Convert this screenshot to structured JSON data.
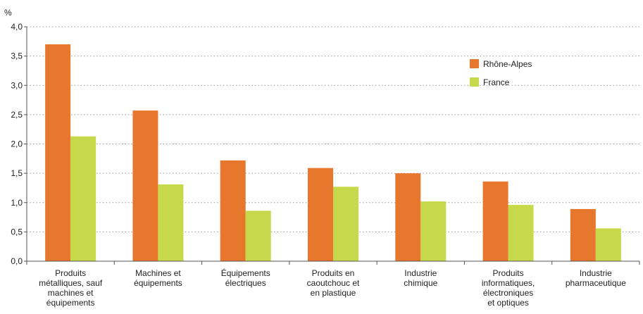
{
  "chart_data": {
    "type": "bar",
    "ylabel": "%",
    "ylim": [
      0,
      4.0
    ],
    "yticks": [
      "0,0",
      "0,5",
      "1,0",
      "1,5",
      "2,0",
      "2,5",
      "3,0",
      "3,5",
      "4,0"
    ],
    "grid": true,
    "legend_position": "top-right",
    "categories": [
      [
        "Produits",
        "métalliques, sauf",
        "machines et",
        "équipements"
      ],
      [
        "Machines et",
        "équipements"
      ],
      [
        "Équipements",
        "électriques"
      ],
      [
        "Produits en",
        "caoutchouc et",
        "en plastique"
      ],
      [
        "Industrie",
        "chimique"
      ],
      [
        "Produits",
        "informatiques,",
        "électroniques",
        "et optiques"
      ],
      [
        "Industrie",
        "pharmaceutique"
      ]
    ],
    "series": [
      {
        "name": "Rhône-Alpes",
        "color": "#e8772e",
        "values": [
          3.7,
          2.57,
          1.72,
          1.59,
          1.5,
          1.36,
          0.89
        ]
      },
      {
        "name": "France",
        "color": "#c5d94a",
        "values": [
          2.13,
          1.31,
          0.86,
          1.27,
          1.02,
          0.96,
          0.56
        ]
      }
    ]
  }
}
